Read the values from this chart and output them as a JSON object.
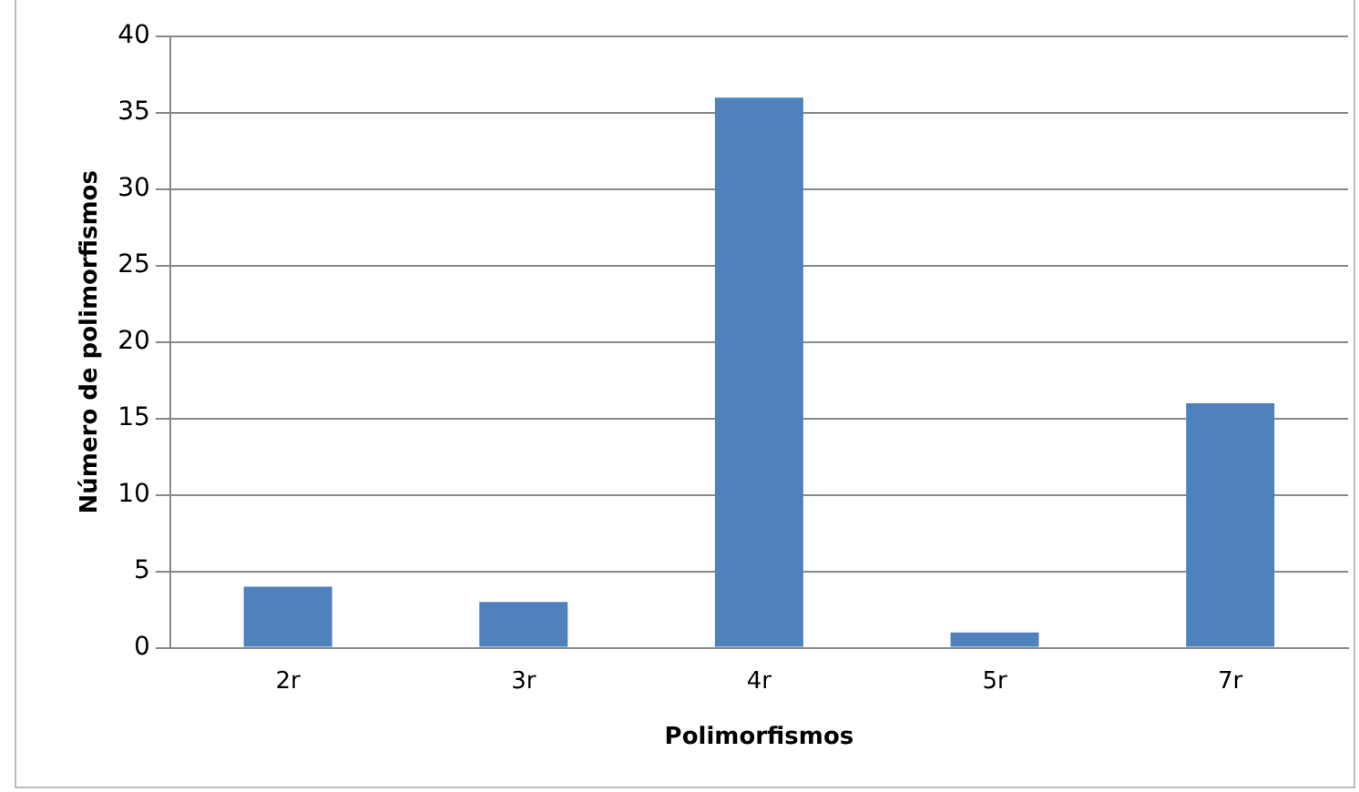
{
  "chart_data": {
    "type": "bar",
    "xlabel": "Polimorfismos",
    "ylabel": "Número de polimorfismos",
    "categories": [
      "2r",
      "3r",
      "4r",
      "5r",
      "7r"
    ],
    "values": [
      4,
      3,
      36,
      1,
      16
    ],
    "color": "#4f81bd",
    "ylim": [
      0,
      40
    ],
    "yticks": [
      0,
      5,
      10,
      15,
      20,
      25,
      30,
      35,
      40
    ],
    "grid": "y",
    "legend": false
  }
}
